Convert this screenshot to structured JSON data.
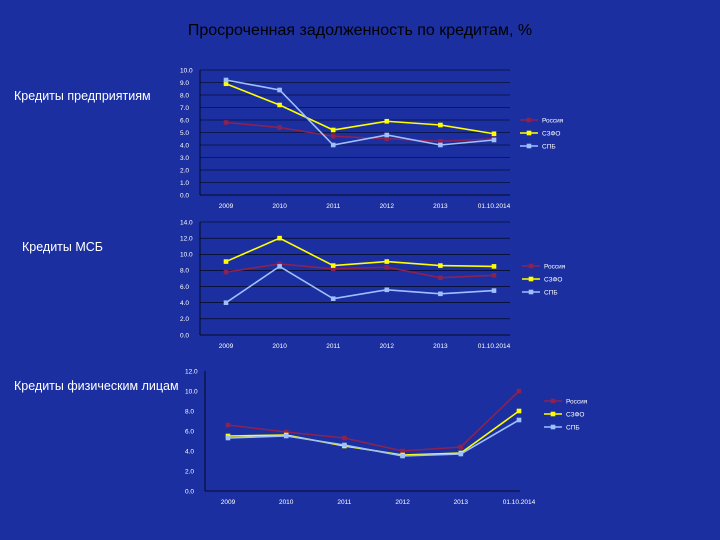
{
  "slide": {
    "title": "Просроченная задолженность по кредитам, %",
    "labels": [
      "Кредиты предприятиям",
      "Кредиты МСБ",
      "Кредиты физическим лицам"
    ]
  },
  "colors": {
    "background": "#1b2fa0",
    "Россия": "#8b2252",
    "СЗФО": "#ffff00",
    "СПБ": "#9ec0ff",
    "grid": "#000000"
  },
  "chart_data": [
    {
      "type": "line",
      "categories": [
        "2009",
        "2010",
        "2011",
        "2012",
        "2013",
        "01.10.2014"
      ],
      "ylim": [
        0,
        10
      ],
      "yticks": [
        "0.0",
        "1.0",
        "2.0",
        "3.0",
        "4.0",
        "5.0",
        "6.0",
        "7.0",
        "8.0",
        "9.0",
        "10.0"
      ],
      "grid": true,
      "legend": "right",
      "series": [
        {
          "name": "Россия",
          "values": [
            5.8,
            5.4,
            4.7,
            4.5,
            4.3,
            4.5
          ]
        },
        {
          "name": "СЗФО",
          "values": [
            8.9,
            7.2,
            5.2,
            5.9,
            5.6,
            4.9
          ]
        },
        {
          "name": "СПБ",
          "values": [
            9.2,
            8.4,
            4.0,
            4.8,
            4.0,
            4.4
          ]
        }
      ]
    },
    {
      "type": "line",
      "categories": [
        "2009",
        "2010",
        "2011",
        "2012",
        "2013",
        "01.10.2014"
      ],
      "ylim": [
        0,
        14
      ],
      "yticks": [
        "0.0",
        "2.0",
        "4.0",
        "6.0",
        "8.0",
        "10.0",
        "12.0",
        "14.0"
      ],
      "grid": true,
      "legend": "right",
      "series": [
        {
          "name": "Россия",
          "values": [
            7.8,
            8.8,
            8.2,
            8.4,
            7.1,
            7.4
          ]
        },
        {
          "name": "СЗФО",
          "values": [
            9.1,
            12.0,
            8.6,
            9.1,
            8.6,
            8.5
          ]
        },
        {
          "name": "СПБ",
          "values": [
            4.0,
            8.5,
            4.5,
            5.6,
            5.1,
            5.5
          ]
        }
      ]
    },
    {
      "type": "line",
      "categories": [
        "2009",
        "2010",
        "2011",
        "2012",
        "2013",
        "01.10.2014"
      ],
      "ylim": [
        0,
        12
      ],
      "yticks": [
        "0.0",
        "2.0",
        "4.0",
        "6.0",
        "8.0",
        "10.0",
        "12.0"
      ],
      "grid": false,
      "legend": "right",
      "series": [
        {
          "name": "Россия",
          "values": [
            6.6,
            5.9,
            5.3,
            4.0,
            4.4,
            10.0
          ]
        },
        {
          "name": "СЗФО",
          "values": [
            5.5,
            5.6,
            4.5,
            3.6,
            3.8,
            8.0
          ]
        },
        {
          "name": "СПБ",
          "values": [
            5.3,
            5.5,
            4.6,
            3.5,
            3.7,
            7.1
          ]
        }
      ]
    }
  ]
}
